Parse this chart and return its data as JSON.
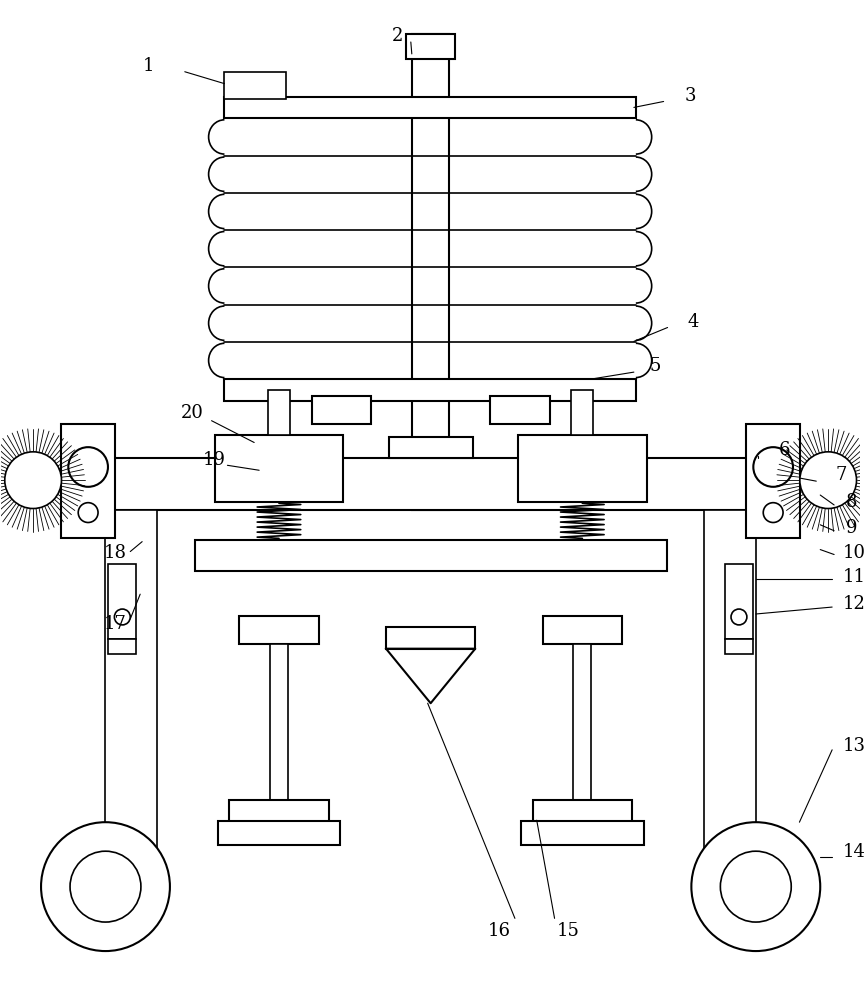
{
  "bg_color": "#ffffff",
  "line_color": "#000000",
  "lw": 1.5,
  "lw2": 1.2,
  "lw_thin": 0.8
}
